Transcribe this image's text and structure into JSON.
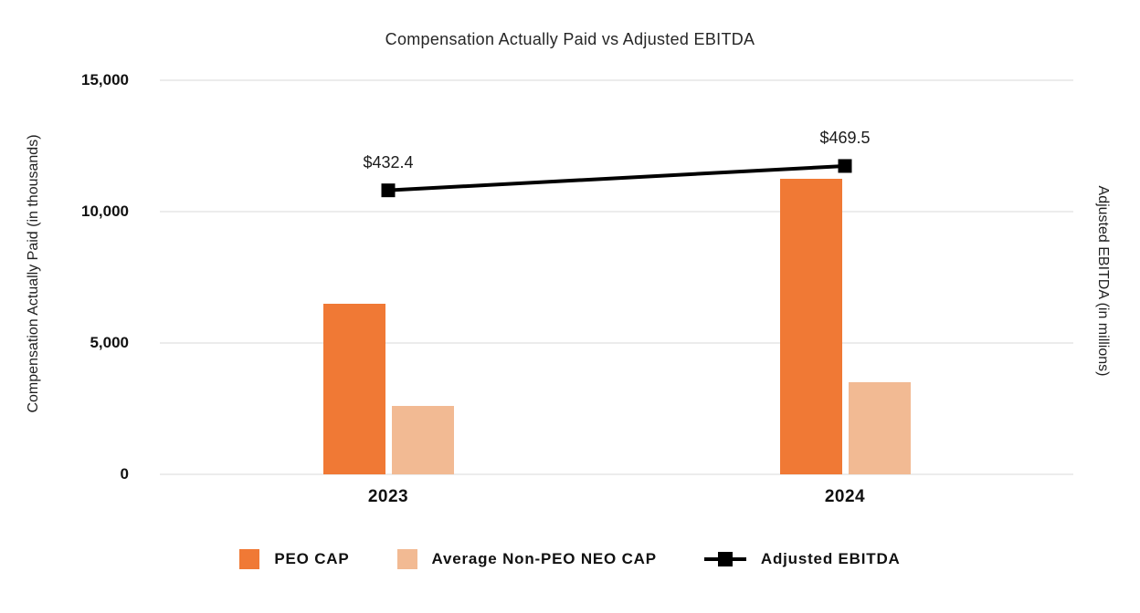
{
  "chart_data": {
    "type": "combo-bar-line",
    "title": "Compensation Actually Paid vs Adjusted EBITDA",
    "categories": [
      "2023",
      "2024"
    ],
    "series": [
      {
        "name": "PEO CAP",
        "type": "bar",
        "axis": "left",
        "color": "#F07935",
        "values": [
          6500,
          11250
        ]
      },
      {
        "name": "Average Non-PEO NEO CAP",
        "type": "bar",
        "axis": "left",
        "color": "#F2BA93",
        "values": [
          2600,
          3500
        ]
      },
      {
        "name": "Adjusted EBITDA",
        "type": "line",
        "axis": "right",
        "color": "#000000",
        "values": [
          432.4,
          469.5
        ],
        "data_labels": [
          "$432.4",
          "$469.5"
        ]
      }
    ],
    "left_axis": {
      "label": "Compensation Actually Paid (in thousands)",
      "min": 0,
      "max": 15000,
      "ticks": [
        0,
        5000,
        10000,
        15000
      ],
      "tick_labels": [
        "0",
        "5,000",
        "10,000",
        "15,000"
      ]
    },
    "right_axis": {
      "label": "Adjusted EBITDA (in millions)",
      "min": 0,
      "max": 600,
      "ticks": []
    },
    "legend": {
      "position": "bottom",
      "items": [
        "PEO CAP",
        "Average Non-PEO NEO CAP",
        "Adjusted EBITDA"
      ]
    },
    "grid": true
  },
  "colors": {
    "bar_primary": "#F07935",
    "bar_secondary": "#F2BA93",
    "line": "#000000",
    "gridline": "#ECECEC",
    "text": "#1A1A1A"
  }
}
